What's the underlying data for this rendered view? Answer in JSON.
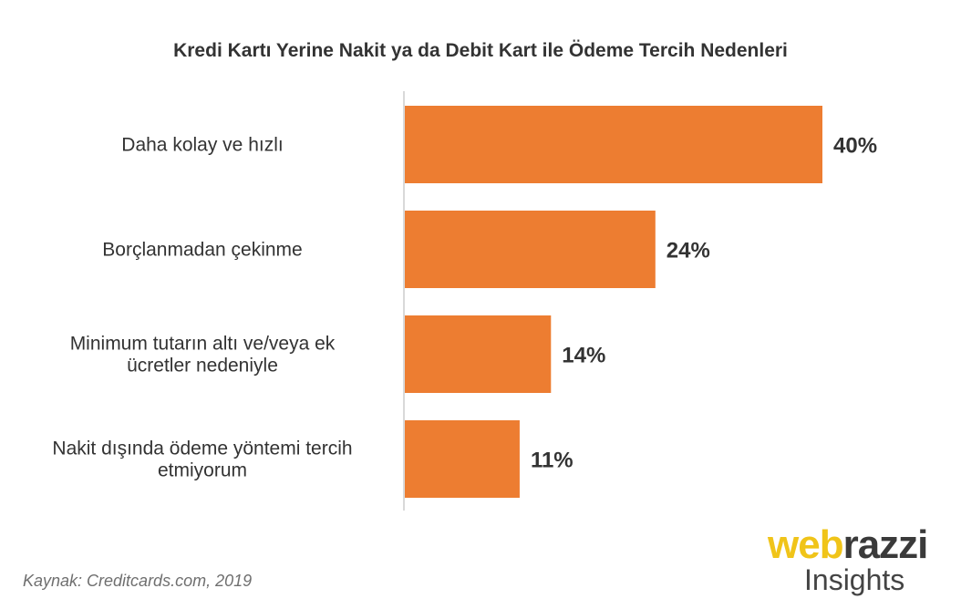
{
  "chart_data": {
    "type": "bar",
    "orientation": "horizontal",
    "title": "Kredi Kartı Yerine Nakit ya da Debit Kart ile Ödeme Tercih Nedenleri",
    "categories": [
      [
        "Daha kolay ve hızlı"
      ],
      [
        "Borçlanmadan çekinme"
      ],
      [
        "Minimum tutarın altı ve/veya ek",
        "ücretler nedeniyle"
      ],
      [
        "Nakit dışında ödeme yöntemi tercih",
        "etmiyorum"
      ]
    ],
    "values": [
      40,
      24,
      14,
      11
    ],
    "value_labels": [
      "40%",
      "24%",
      "14%",
      "11%"
    ],
    "unit": "%",
    "xlim": [
      0,
      40
    ],
    "grid": false,
    "legend": "none",
    "bar_color": "#ed7d31",
    "axis_color": "#d9d9d9"
  },
  "source": "Kaynak: Creditcards.com, 2019",
  "logo": {
    "part1": "web",
    "part2": "razzi",
    "subtitle": "Insights"
  }
}
